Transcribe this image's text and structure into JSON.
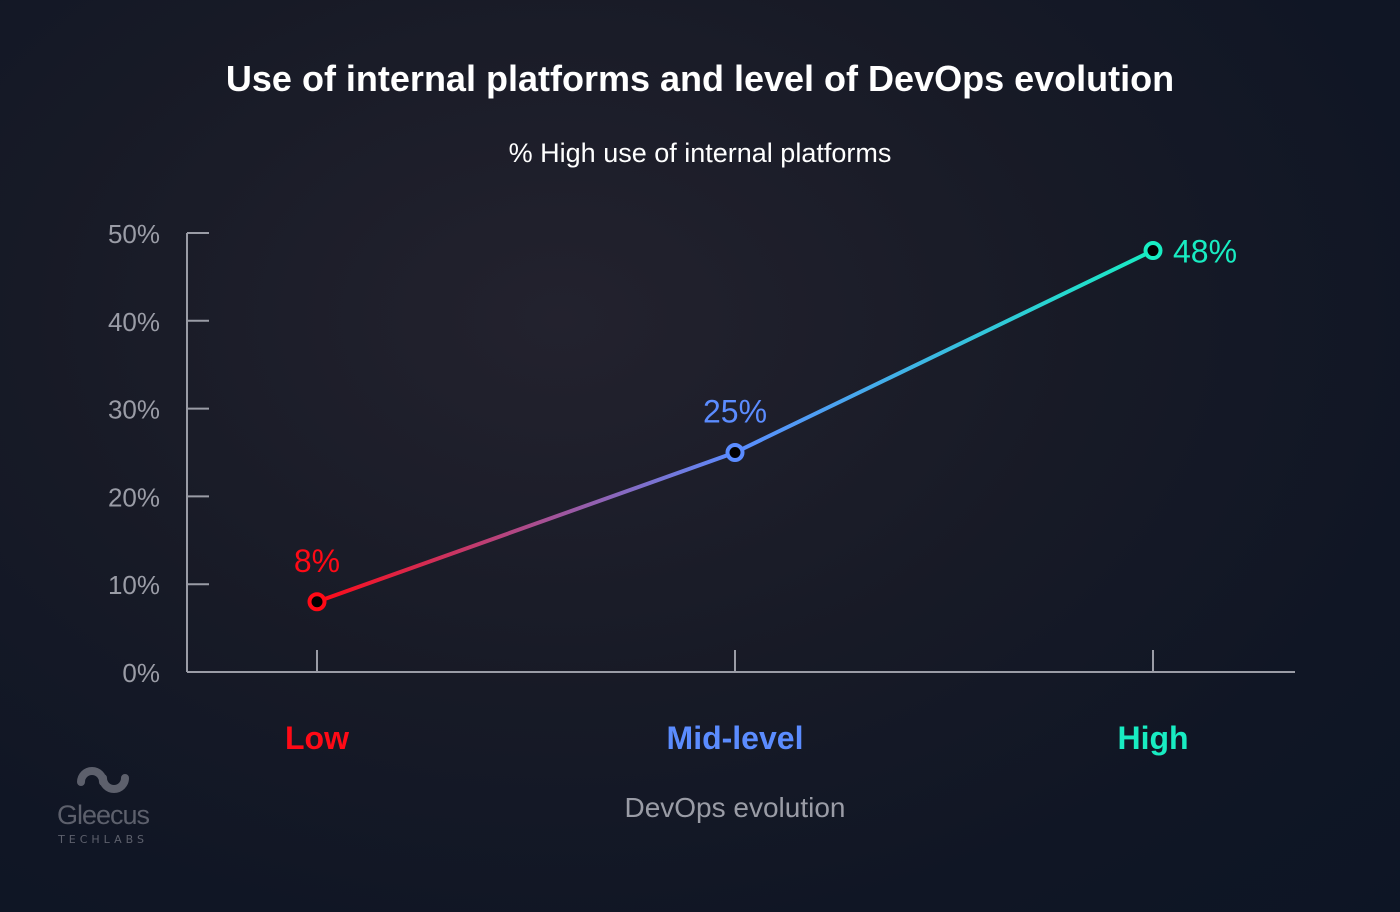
{
  "chart_data": {
    "type": "line",
    "title": "Use of internal platforms and level of DevOps evolution",
    "ylabel": "% High use of internal platforms",
    "xlabel": "DevOps evolution",
    "categories": [
      "Low",
      "Mid-level",
      "High"
    ],
    "values": [
      8,
      25,
      48
    ],
    "data_labels": [
      "8%",
      "25%",
      "48%"
    ],
    "ylim": [
      0,
      50
    ],
    "yticks": [
      "0%",
      "10%",
      "20%",
      "30%",
      "40%",
      "50%"
    ],
    "grid": false,
    "point_colors": [
      "#ff0a16",
      "#5b8cff",
      "#18ecc2"
    ]
  },
  "logo": {
    "name": "Gleecus",
    "sub": "TECHLABS",
    "color": "#5d606c"
  }
}
